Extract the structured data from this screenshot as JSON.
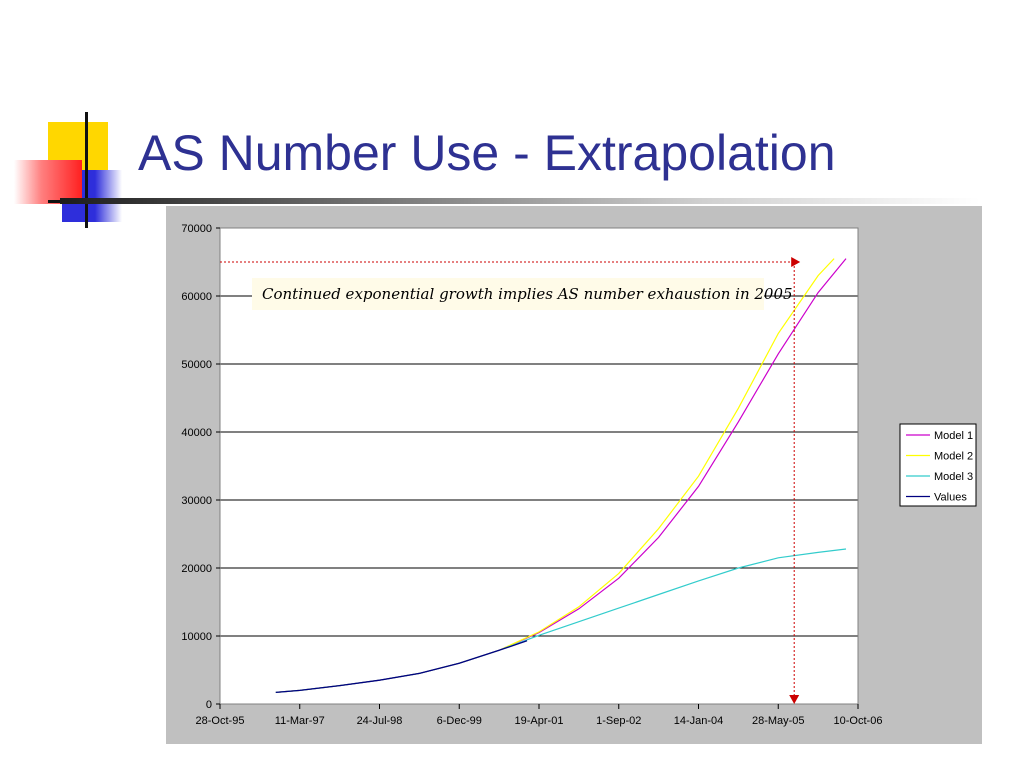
{
  "slide": {
    "title": "AS Number Use - Extrapolation"
  },
  "colors": {
    "title": "#2e3192",
    "deco_yellow": "#ffd700",
    "deco_red": "#ff3b3b",
    "deco_blue": "#2e2edb",
    "panel": "#c0c0c0",
    "plot": "#ffffff",
    "annotation_arrow": "#cc0000"
  },
  "chart_data": {
    "type": "line",
    "title": "",
    "xlabel": "",
    "ylabel": "",
    "ylim": [
      0,
      70000
    ],
    "y_ticks": [
      "0",
      "10000",
      "20000",
      "30000",
      "40000",
      "50000",
      "60000",
      "70000"
    ],
    "x_ticks": [
      "28-Oct-95",
      "11-Mar-97",
      "24-Jul-98",
      "6-Dec-99",
      "19-Apr-01",
      "1-Sep-02",
      "14-Jan-04",
      "28-May-05",
      "10-Oct-06"
    ],
    "x_range_ticks": [
      0,
      8
    ],
    "grid": "horizontal",
    "legend_position": "right",
    "series": [
      {
        "name": "Model 1",
        "color": "#cc00cc",
        "x": [
          0.7,
          1.0,
          1.5,
          2.0,
          2.5,
          3.0,
          3.5,
          4.0,
          4.5,
          5.0,
          5.5,
          6.0,
          6.5,
          7.0,
          7.5,
          7.85
        ],
        "y": [
          1700,
          2000,
          2700,
          3500,
          4500,
          6000,
          7900,
          10500,
          14000,
          18500,
          24500,
          32000,
          41500,
          51500,
          60500,
          65500
        ]
      },
      {
        "name": "Model 2",
        "color": "#ffff00",
        "x": [
          0.7,
          1.0,
          1.5,
          2.0,
          2.5,
          3.0,
          3.5,
          4.0,
          4.5,
          5.0,
          5.5,
          6.0,
          6.5,
          7.0,
          7.5,
          7.7
        ],
        "y": [
          1700,
          2000,
          2700,
          3500,
          4500,
          6000,
          7900,
          10600,
          14300,
          19200,
          25800,
          33500,
          43500,
          54500,
          63000,
          65500
        ]
      },
      {
        "name": "Model 3",
        "color": "#33cccc",
        "x": [
          0.7,
          1.0,
          1.5,
          2.0,
          2.5,
          3.0,
          3.5,
          4.0,
          4.5,
          5.0,
          5.5,
          6.0,
          6.5,
          7.0,
          7.5,
          7.85
        ],
        "y": [
          1700,
          2000,
          2700,
          3500,
          4500,
          6000,
          7900,
          10100,
          12100,
          14100,
          16100,
          18100,
          20000,
          21500,
          22300,
          22800
        ]
      },
      {
        "name": "Values",
        "color": "#000080",
        "x": [
          0.7,
          1.0,
          1.5,
          2.0,
          2.5,
          3.0,
          3.5,
          3.85
        ],
        "y": [
          1700,
          2000,
          2700,
          3500,
          4500,
          6000,
          7900,
          9300
        ]
      }
    ],
    "annotation": {
      "text": "Continued exponential growth implies AS number exhaustion in 2005",
      "exhaustion_y": 65000,
      "exhaustion_x": 7.2
    }
  }
}
